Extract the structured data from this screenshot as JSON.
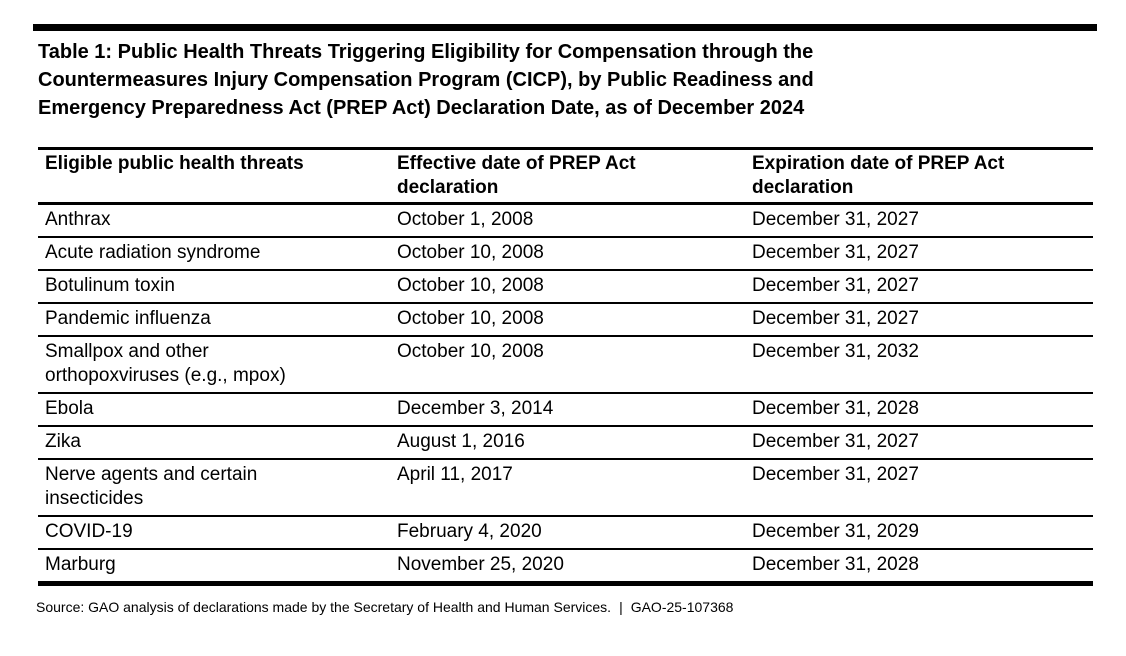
{
  "document": {
    "title_lines": [
      "Table 1: Public Health Threats Triggering Eligibility for Compensation through the",
      "Countermeasures Injury Compensation Program (CICP), by Public Readiness and",
      "Emergency Preparedness Act (PREP Act) Declaration Date, as of December 2024"
    ]
  },
  "table": {
    "columns": [
      "Eligible public health threats",
      "Effective date of PREP Act declaration",
      "Expiration date of PREP Act declaration"
    ],
    "rows": [
      {
        "threat": "Anthrax",
        "effective_date": "October 1, 2008",
        "expiration_date": "December 31, 2027"
      },
      {
        "threat": "Acute radiation syndrome",
        "effective_date": "October 10, 2008",
        "expiration_date": "December 31, 2027"
      },
      {
        "threat": "Botulinum toxin",
        "effective_date": "October 10, 2008",
        "expiration_date": "December 31, 2027"
      },
      {
        "threat": "Pandemic influenza",
        "effective_date": "October 10, 2008",
        "expiration_date": "December 31, 2027"
      },
      {
        "threat": "Smallpox and other orthopoxviruses (e.g., mpox)",
        "effective_date": "October 10, 2008",
        "expiration_date": "December 31, 2032"
      },
      {
        "threat": "Ebola",
        "effective_date": "December 3, 2014",
        "expiration_date": "December 31, 2028"
      },
      {
        "threat": "Zika",
        "effective_date": "August 1, 2016",
        "expiration_date": "December 31, 2027"
      },
      {
        "threat": "Nerve agents and certain insecticides",
        "effective_date": "April 11, 2017",
        "expiration_date": "December 31, 2027"
      },
      {
        "threat": "COVID-19",
        "effective_date": "February 4, 2020",
        "expiration_date": "December 31, 2029"
      },
      {
        "threat": "Marburg",
        "effective_date": "November 25, 2020",
        "expiration_date": "December 31, 2028"
      }
    ]
  },
  "footer": {
    "source_text": "Source: GAO analysis of declarations made by the Secretary of Health and Human Services.",
    "separator": "|",
    "report_number": "GAO-25-107368"
  },
  "colors": {
    "text": "#000000",
    "background": "#ffffff",
    "rule": "#000000"
  }
}
